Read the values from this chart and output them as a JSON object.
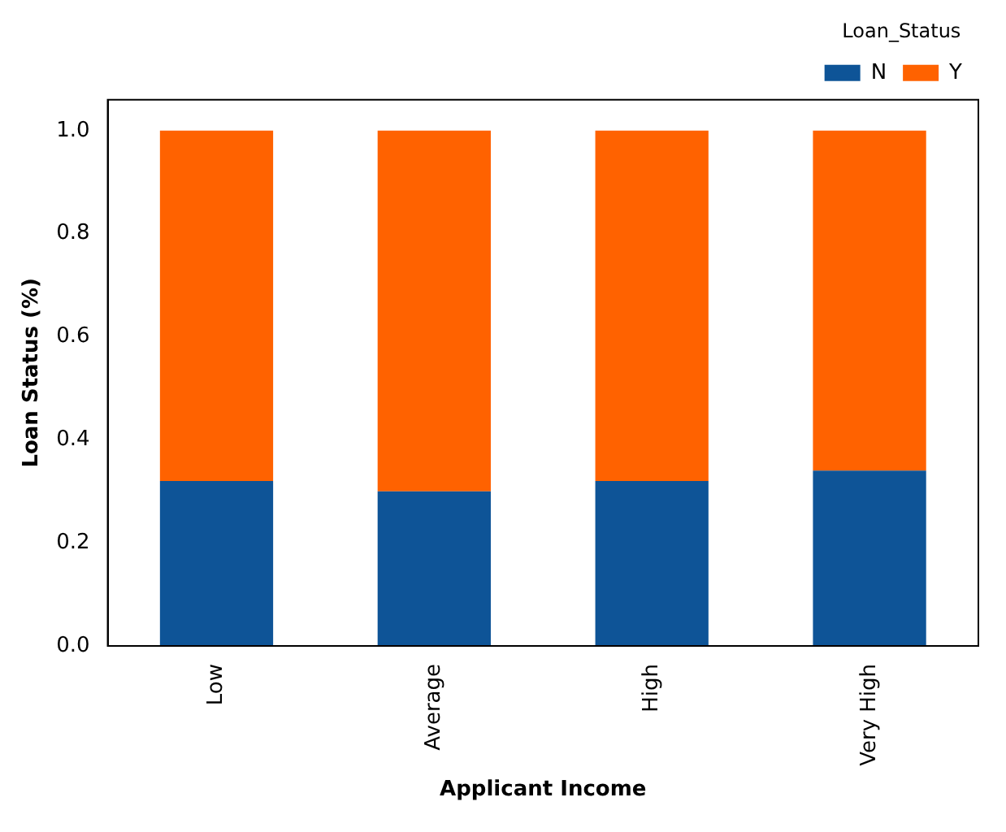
{
  "chart_data": {
    "type": "bar",
    "stacked": true,
    "xlabel": "Applicant Income",
    "ylabel": "Loan Status (%)",
    "legend_title": "Loan_Status",
    "legend": "top right",
    "categories": [
      "Low",
      "Average",
      "High",
      "Very High"
    ],
    "series": [
      {
        "name": "N",
        "color": "#0e5497",
        "values": [
          0.32,
          0.3,
          0.32,
          0.34
        ]
      },
      {
        "name": "Y",
        "color": "#ff6200",
        "values": [
          0.68,
          0.7,
          0.68,
          0.66
        ]
      }
    ],
    "ylim": [
      0,
      1.06
    ],
    "yticks": [
      {
        "value": 0,
        "label": "0.0"
      },
      {
        "value": 0.2,
        "label": "0.2"
      },
      {
        "value": 0.4,
        "label": "0.4"
      },
      {
        "value": 0.6,
        "label": "0.6"
      },
      {
        "value": 0.8,
        "label": "0.8"
      },
      {
        "value": 1,
        "label": "1.0"
      }
    ],
    "grid": false
  }
}
